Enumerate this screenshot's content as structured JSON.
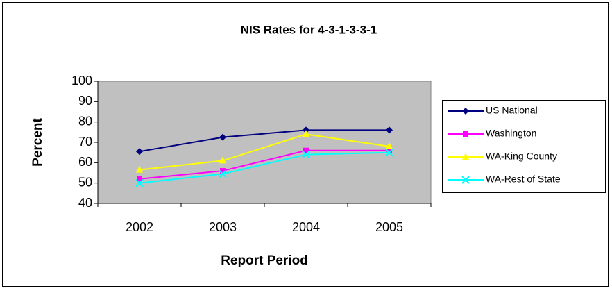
{
  "chart_data": {
    "type": "line",
    "title": "NIS Rates for 4-3-1-3-3-1",
    "x_label": "Report Period",
    "y_label": "Percent",
    "categories": [
      "2002",
      "2003",
      "2004",
      "2005"
    ],
    "series": [
      {
        "name": "US National",
        "color": "#000080",
        "marker": "diamond",
        "values": [
          65.5,
          72.5,
          76,
          76
        ]
      },
      {
        "name": "Washington",
        "color": "#ff00ff",
        "marker": "square",
        "values": [
          52,
          56,
          66,
          66
        ]
      },
      {
        "name": "WA-King County",
        "color": "#ffff00",
        "marker": "triangle",
        "values": [
          56.5,
          61,
          74,
          68
        ]
      },
      {
        "name": "WA-Rest of State",
        "color": "#00ffff",
        "marker": "x",
        "values": [
          50,
          54.5,
          64,
          65
        ]
      }
    ],
    "ylim": [
      40,
      100
    ],
    "yticks": [
      40,
      50,
      60,
      70,
      80,
      90,
      100
    ],
    "grid": false,
    "legend": "right",
    "plot_background": "#c0c0c0"
  }
}
